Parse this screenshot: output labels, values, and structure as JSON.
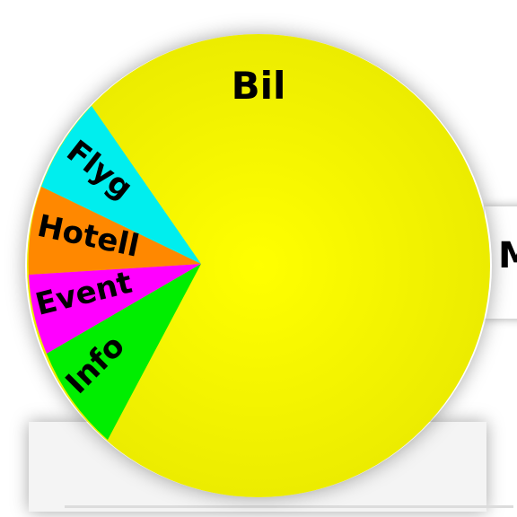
{
  "wheel": {
    "segments": [
      {
        "label": "Bil",
        "color": "#f2f200"
      },
      {
        "label": "Flyg",
        "color": "#00eeee"
      },
      {
        "label": "Hotell",
        "color": "#ff8800"
      },
      {
        "label": "Event",
        "color": "#ff00ff"
      },
      {
        "label": "Info",
        "color": "#00ee00"
      }
    ]
  },
  "side_tab": {
    "label": "M"
  }
}
